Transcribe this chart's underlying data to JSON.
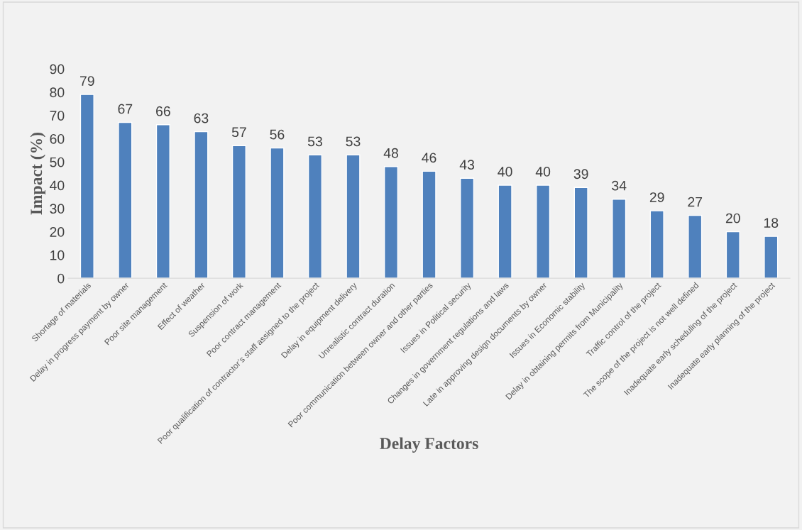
{
  "chart_data": {
    "type": "bar",
    "xlabel": "Delay Factors",
    "ylabel": "Impact (%)",
    "categories": [
      "Shortage of materials",
      "Delay in progress payment by owner",
      "Poor site management",
      "Effect of weather",
      "Suspension of work",
      "Poor contract management",
      "Poor qualification of contractor’s staff assigned to the project",
      "Delay in equipment delivery",
      "Unrealistic contract duration",
      "Poor communication between owner and other parties",
      "Issues in Political security",
      "Changes in government regulations and laws",
      "Late in approving design documents by owner",
      "Issues in Economic stability",
      "Delay in obtaining permits from Municipality",
      "Traffic control of the project",
      "The scope of the project is not well defined",
      "Inadequate early scheduling of the project",
      "Inadequate early planning of the project"
    ],
    "values": [
      79,
      67,
      66,
      63,
      57,
      56,
      53,
      53,
      48,
      46,
      43,
      40,
      40,
      39,
      34,
      29,
      27,
      20,
      18
    ],
    "color": "#4f81bd",
    "ylim": [
      0,
      90
    ],
    "yticks": [
      0,
      10,
      20,
      30,
      40,
      50,
      60,
      70,
      80,
      90
    ],
    "data_labels": true,
    "grid": false,
    "legend": false
  }
}
